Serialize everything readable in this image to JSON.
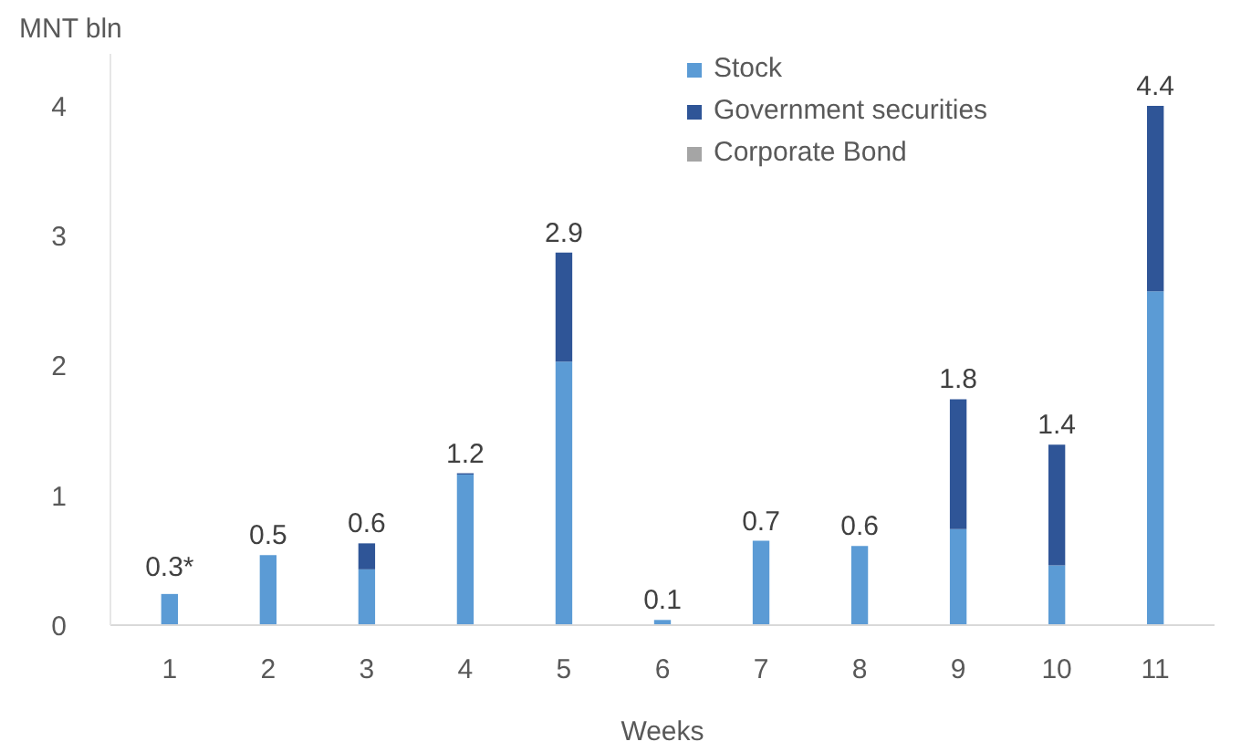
{
  "chart_data": {
    "type": "bar",
    "stacked": true,
    "ylabel": "MNT bln",
    "xlabel": "Weeks",
    "categories": [
      "1",
      "2",
      "3",
      "4",
      "5",
      "6",
      "7",
      "8",
      "9",
      "10",
      "11"
    ],
    "series": [
      {
        "name": "Stock",
        "color": "#5b9bd5",
        "values": [
          0.24,
          0.54,
          0.43,
          1.16,
          2.03,
          0.04,
          0.65,
          0.61,
          0.74,
          0.46,
          2.57
        ]
      },
      {
        "name": "Government securities",
        "color": "#2f5597",
        "values": [
          0,
          0,
          0.2,
          0.01,
          0.84,
          0,
          0,
          0,
          1.0,
          0.93,
          1.43
        ]
      },
      {
        "name": "Corporate Bond",
        "color": "#a5a5a5",
        "values": [
          0,
          0,
          0,
          0,
          0,
          0,
          0,
          0,
          0,
          0,
          0
        ]
      }
    ],
    "annotations": [
      {
        "text": "0.3*",
        "x": "1",
        "y": 0.24
      },
      {
        "text": "0.5",
        "x": "2",
        "y": 0.54
      },
      {
        "text": "0.6",
        "x": "3",
        "y": 0.63
      },
      {
        "text": "1.2",
        "x": "4",
        "y": 1.17
      },
      {
        "text": "2.9",
        "x": "5",
        "y": 2.87
      },
      {
        "text": "0.1",
        "x": "6",
        "y": 0.04
      },
      {
        "text": "0.7",
        "x": "7",
        "y": 0.65
      },
      {
        "text": "0.6",
        "x": "8",
        "y": 0.61
      },
      {
        "text": "1.8",
        "x": "9",
        "y": 1.74
      },
      {
        "text": "1.4",
        "x": "10",
        "y": 1.39
      },
      {
        "text": "4.4",
        "x": "11",
        "y": 4.0
      }
    ],
    "ylim": [
      0,
      4.4
    ],
    "yticks": [
      0,
      1,
      2,
      3,
      4
    ],
    "grid": false,
    "legend": "top"
  }
}
